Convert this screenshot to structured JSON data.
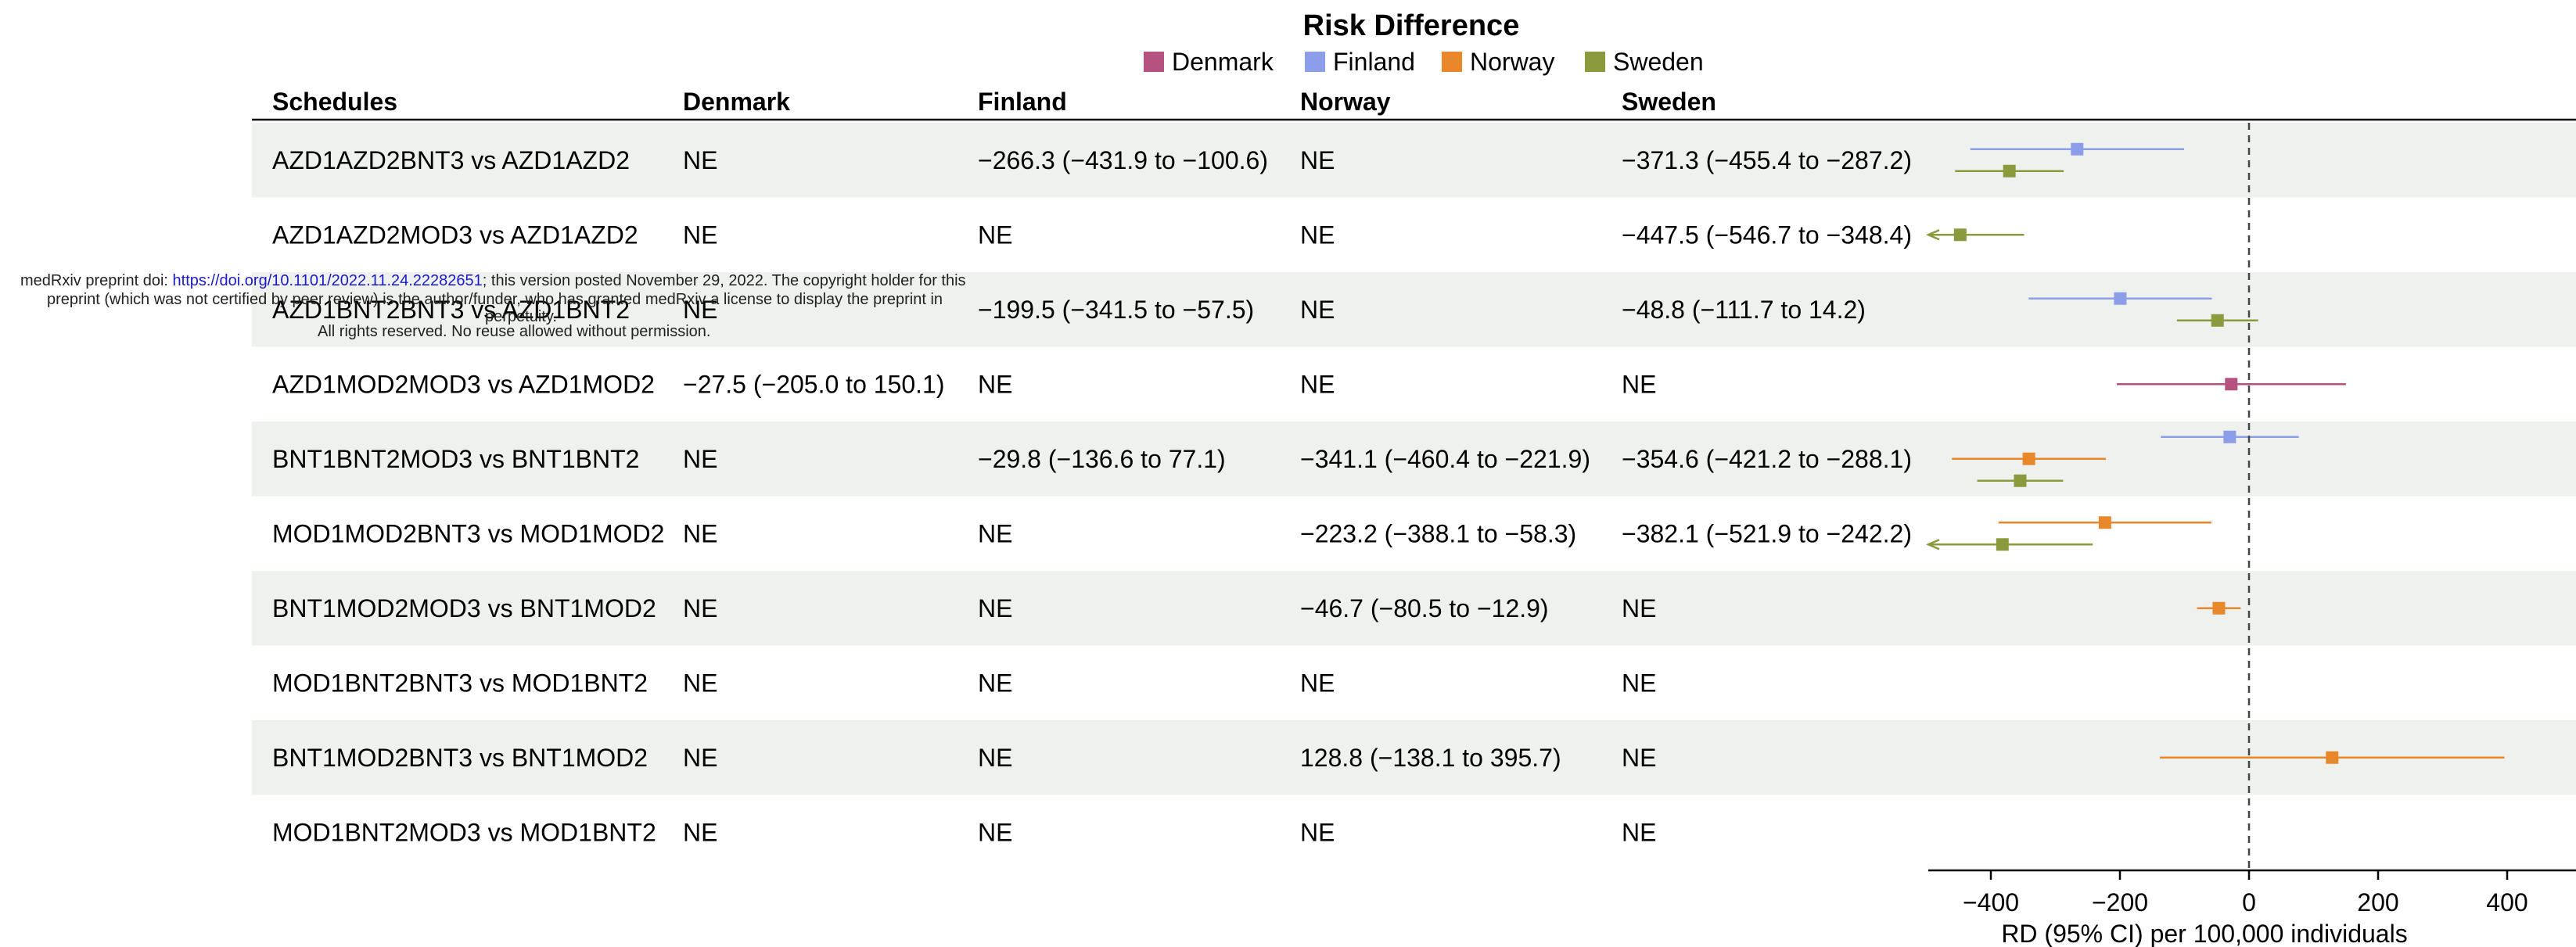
{
  "chart_data": {
    "type": "forest",
    "title": "Risk Difference",
    "legend": [
      {
        "name": "Denmark",
        "color": "#b5527f"
      },
      {
        "name": "Finland",
        "color": "#8c9ee8"
      },
      {
        "name": "Norway",
        "color": "#e8882a"
      },
      {
        "name": "Sweden",
        "color": "#8c9a3e"
      }
    ],
    "columns": [
      "Schedules",
      "Denmark",
      "Finland",
      "Norway",
      "Sweden"
    ],
    "rows": [
      {
        "schedule": "AZD1AZD2BNT3 vs AZD1AZD2",
        "denmark": "NE",
        "finland": "−266.3 (−431.9 to −100.6)",
        "norway": "NE",
        "sweden": "−371.3 (−455.4 to −287.2)",
        "estimates": [
          {
            "country": "Finland",
            "rd": -266.3,
            "lo": -431.9,
            "hi": -100.6
          },
          {
            "country": "Sweden",
            "rd": -371.3,
            "lo": -455.4,
            "hi": -287.2
          }
        ]
      },
      {
        "schedule": "AZD1AZD2MOD3 vs AZD1AZD2",
        "denmark": "NE",
        "finland": "NE",
        "norway": "NE",
        "sweden": "−447.5 (−546.7 to −348.4)",
        "estimates": [
          {
            "country": "Sweden",
            "rd": -447.5,
            "lo": -546.7,
            "hi": -348.4
          }
        ]
      },
      {
        "schedule": "AZD1BNT2BNT3 vs AZD1BNT2",
        "denmark": "NE",
        "finland": "−199.5 (−341.5 to −57.5)",
        "norway": "NE",
        "sweden": "−48.8 (−111.7 to 14.2)",
        "estimates": [
          {
            "country": "Finland",
            "rd": -199.5,
            "lo": -341.5,
            "hi": -57.5
          },
          {
            "country": "Sweden",
            "rd": -48.8,
            "lo": -111.7,
            "hi": 14.2
          }
        ]
      },
      {
        "schedule": "AZD1MOD2MOD3 vs AZD1MOD2",
        "denmark": "−27.5 (−205.0 to 150.1)",
        "finland": "NE",
        "norway": "NE",
        "sweden": "NE",
        "estimates": [
          {
            "country": "Denmark",
            "rd": -27.5,
            "lo": -205.0,
            "hi": 150.1
          }
        ]
      },
      {
        "schedule": "BNT1BNT2MOD3 vs BNT1BNT2",
        "denmark": "NE",
        "finland": "−29.8 (−136.6 to 77.1)",
        "norway": "−341.1 (−460.4 to −221.9)",
        "sweden": "−354.6 (−421.2 to −288.1)",
        "estimates": [
          {
            "country": "Finland",
            "rd": -29.8,
            "lo": -136.6,
            "hi": 77.1
          },
          {
            "country": "Norway",
            "rd": -341.1,
            "lo": -460.4,
            "hi": -221.9
          },
          {
            "country": "Sweden",
            "rd": -354.6,
            "lo": -421.2,
            "hi": -288.1
          }
        ]
      },
      {
        "schedule": "MOD1MOD2BNT3 vs MOD1MOD2",
        "denmark": "NE",
        "finland": "NE",
        "norway": "−223.2 (−388.1 to −58.3)",
        "sweden": "−382.1 (−521.9 to −242.2)",
        "estimates": [
          {
            "country": "Norway",
            "rd": -223.2,
            "lo": -388.1,
            "hi": -58.3
          },
          {
            "country": "Sweden",
            "rd": -382.1,
            "lo": -521.9,
            "hi": -242.2
          }
        ]
      },
      {
        "schedule": "BNT1MOD2MOD3 vs BNT1MOD2",
        "denmark": "NE",
        "finland": "NE",
        "norway": "−46.7 (−80.5 to −12.9)",
        "sweden": "NE",
        "estimates": [
          {
            "country": "Norway",
            "rd": -46.7,
            "lo": -80.5,
            "hi": -12.9
          }
        ]
      },
      {
        "schedule": "MOD1BNT2BNT3 vs MOD1BNT2",
        "denmark": "NE",
        "finland": "NE",
        "norway": "NE",
        "sweden": "NE",
        "estimates": []
      },
      {
        "schedule": "BNT1MOD2BNT3 vs BNT1MOD2",
        "denmark": "NE",
        "finland": "NE",
        "norway": "128.8 (−138.1 to 395.7)",
        "sweden": "NE",
        "estimates": [
          {
            "country": "Norway",
            "rd": 128.8,
            "lo": -138.1,
            "hi": 395.7
          }
        ]
      },
      {
        "schedule": "MOD1BNT2MOD3 vs MOD1BNT2",
        "denmark": "NE",
        "finland": "NE",
        "norway": "NE",
        "sweden": "NE",
        "estimates": []
      }
    ],
    "x_axis": {
      "label": "RD (95% CI) per 100,000 individuals",
      "ticks": [
        -400,
        -200,
        0,
        200,
        400
      ],
      "tick_labels": [
        "−400",
        "−200",
        "0",
        "200",
        "400"
      ],
      "range": [
        -500,
        500
      ],
      "reference_line": 0
    }
  },
  "watermark": {
    "prefix": "medRxiv preprint doi: ",
    "doi": "https://doi.org/10.1101/2022.11.24.22282651",
    "suffix": "; this version posted November 29, 2022. The copyright holder for this",
    "line2": "preprint (which was not certified by peer review) is the author/funder, who has granted medRxiv a license to display the preprint in",
    "line3": "perpetuity.",
    "line4": "All rights reserved. No reuse allowed without permission."
  }
}
